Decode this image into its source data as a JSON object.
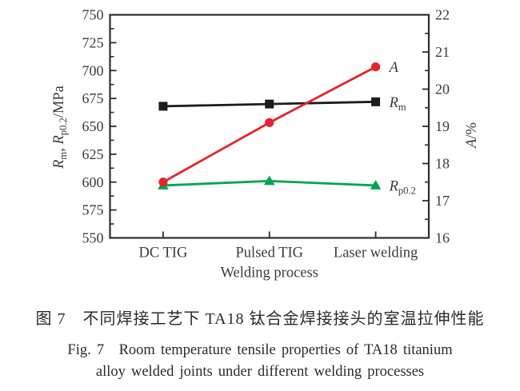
{
  "figure": {
    "caption_zh": "图 7　不同焊接工艺下 TA18 钛合金焊接接头的室温拉伸性能",
    "caption_en_line1": "Fig. 7　Room temperature tensile properties of TA18 titanium",
    "caption_en_line2": "alloy welded joints under different welding processes"
  },
  "chart_data": {
    "type": "line",
    "categories": [
      "DC TIG",
      "Pulsed TIG",
      "Laser welding"
    ],
    "xlabel": "Welding process",
    "grid": false,
    "legend_position": "series-end-labels",
    "axes": {
      "left": {
        "title_text": "Rm, Rp0.2/MPa",
        "title_segments": [
          {
            "t": "R",
            "style": "italic"
          },
          {
            "t": "m",
            "style": "sub"
          },
          {
            "t": ", "
          },
          {
            "t": "R",
            "style": "italic"
          },
          {
            "t": "p0.2",
            "style": "sub"
          },
          {
            "t": "/MPa"
          }
        ],
        "min": 550,
        "max": 750,
        "major_step": 25,
        "minor_per_major": 1,
        "tick_labels": [
          "750",
          "725",
          "700",
          "675",
          "650",
          "625",
          "600",
          "575",
          "550"
        ]
      },
      "right": {
        "title_text": "A/%",
        "title_segments": [
          {
            "t": "A",
            "style": "italic"
          },
          {
            "t": "/%"
          }
        ],
        "min": 16,
        "max": 22,
        "major_step": 1,
        "minor_per_major": 1,
        "tick_labels": [
          "22",
          "21",
          "20",
          "19",
          "18",
          "17",
          "16"
        ]
      }
    },
    "series": [
      {
        "id": "Rm",
        "axis": "left",
        "marker": "square",
        "color": "#1c1c1c",
        "values": [
          668,
          670,
          672
        ],
        "label_text": "Rm",
        "label_segments": [
          {
            "t": "R",
            "style": "italic"
          },
          {
            "t": "m",
            "style": "sub"
          }
        ]
      },
      {
        "id": "Rp02",
        "axis": "left",
        "marker": "triangle",
        "color": "#00a551",
        "values": [
          597,
          601,
          597
        ],
        "label_text": "Rp0.2",
        "label_segments": [
          {
            "t": "R",
            "style": "italic"
          },
          {
            "t": "p0.2",
            "style": "sub"
          }
        ]
      },
      {
        "id": "A",
        "axis": "right",
        "marker": "circle",
        "color": "#e62329",
        "values": [
          17.5,
          19.1,
          20.6
        ],
        "label_text": "A",
        "label_segments": [
          {
            "t": "A",
            "style": "italic"
          }
        ]
      }
    ],
    "colors": {
      "axis": "#2e2e2e",
      "text": "#3c3c3c",
      "background": "#ffffff"
    }
  }
}
